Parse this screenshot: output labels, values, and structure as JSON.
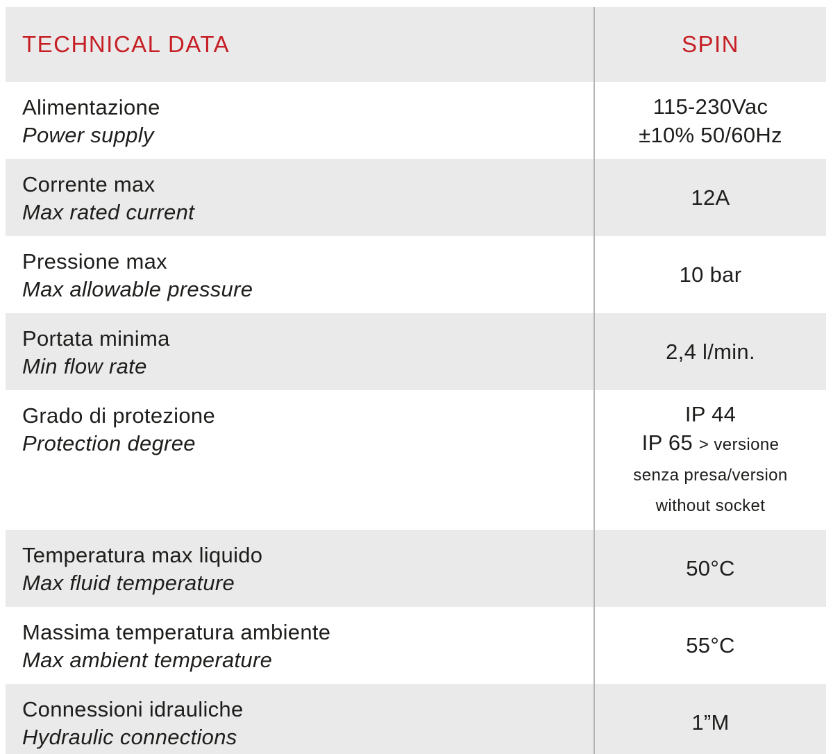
{
  "colors": {
    "accent_red": "#c62026",
    "row_gray": "#eaeaea",
    "divider_gray": "#b3b3b3",
    "bottom_border": "#c9c9c9",
    "text": "#1d1d1b"
  },
  "table": {
    "header": {
      "left": "TECHNICAL DATA",
      "right": "SPIN"
    },
    "rows": [
      {
        "label_it": "Alimentazione",
        "label_en": "Power supply",
        "value_lines": [
          {
            "parts": [
              {
                "text": "115-230Vac",
                "small": false
              }
            ]
          },
          {
            "parts": [
              {
                "text": "±10% 50/60Hz",
                "small": false
              }
            ]
          }
        ]
      },
      {
        "label_it": "Corrente max",
        "label_en": "Max rated current",
        "value_lines": [
          {
            "parts": [
              {
                "text": "12A",
                "small": false
              }
            ]
          }
        ]
      },
      {
        "label_it": "Pressione max",
        "label_en": "Max allowable pressure",
        "value_lines": [
          {
            "parts": [
              {
                "text": "10 bar",
                "small": false
              }
            ]
          }
        ]
      },
      {
        "label_it": "Portata minima",
        "label_en": "Min flow rate",
        "value_lines": [
          {
            "parts": [
              {
                "text": "2,4 l/min.",
                "small": false
              }
            ]
          }
        ]
      },
      {
        "label_it": "Grado di protezione",
        "label_en": "Protection degree",
        "value_lines": [
          {
            "parts": [
              {
                "text": "IP 44",
                "small": false
              }
            ]
          },
          {
            "parts": [
              {
                "text": "IP 65 ",
                "small": false
              },
              {
                "text": "> versione",
                "small": true
              }
            ]
          },
          {
            "parts": [
              {
                "text": "senza presa/version",
                "small": true
              }
            ]
          },
          {
            "parts": [
              {
                "text": "without socket",
                "small": true
              }
            ]
          }
        ]
      },
      {
        "label_it": "Temperatura max liquido",
        "label_en": "Max fluid temperature",
        "value_lines": [
          {
            "parts": [
              {
                "text": "50°C",
                "small": false
              }
            ]
          }
        ]
      },
      {
        "label_it": "Massima temperatura ambiente",
        "label_en": "Max ambient temperature",
        "value_lines": [
          {
            "parts": [
              {
                "text": "55°C",
                "small": false
              }
            ]
          }
        ]
      },
      {
        "label_it": "Connessioni idrauliche",
        "label_en": "Hydraulic connections",
        "value_lines": [
          {
            "parts": [
              {
                "text": "1”M",
                "small": false
              }
            ]
          }
        ]
      }
    ]
  }
}
